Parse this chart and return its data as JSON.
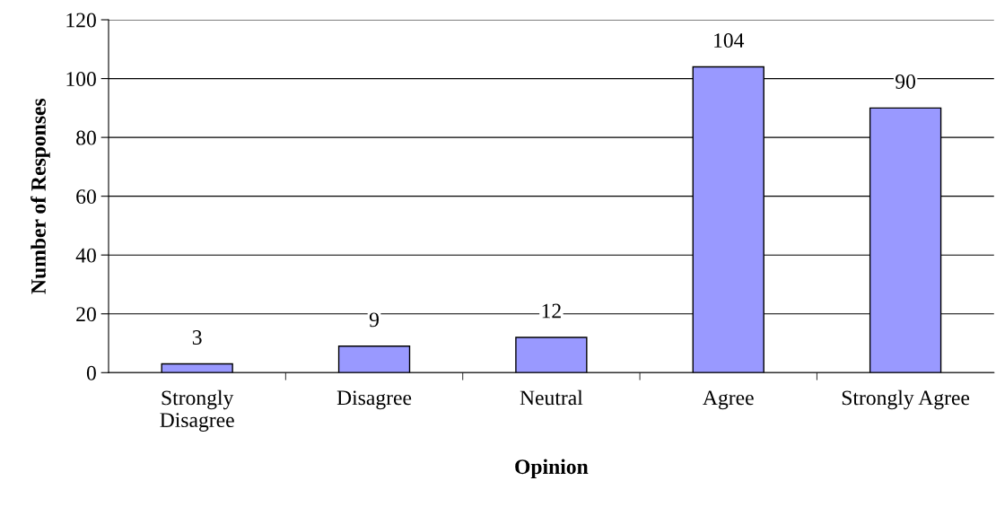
{
  "chart_data": {
    "type": "bar",
    "xlabel": "Opinion",
    "ylabel": "Number of Responses",
    "categories": [
      "Strongly\nDisagree",
      "Disagree",
      "Neutral",
      "Agree",
      "Strongly Agree"
    ],
    "values": [
      3,
      9,
      12,
      104,
      90
    ],
    "color": "#9999ff",
    "ylim": [
      0,
      120
    ],
    "yticks": [
      0,
      20,
      40,
      60,
      80,
      100,
      120
    ],
    "grid": "y",
    "data_labels": true,
    "legend": false
  }
}
